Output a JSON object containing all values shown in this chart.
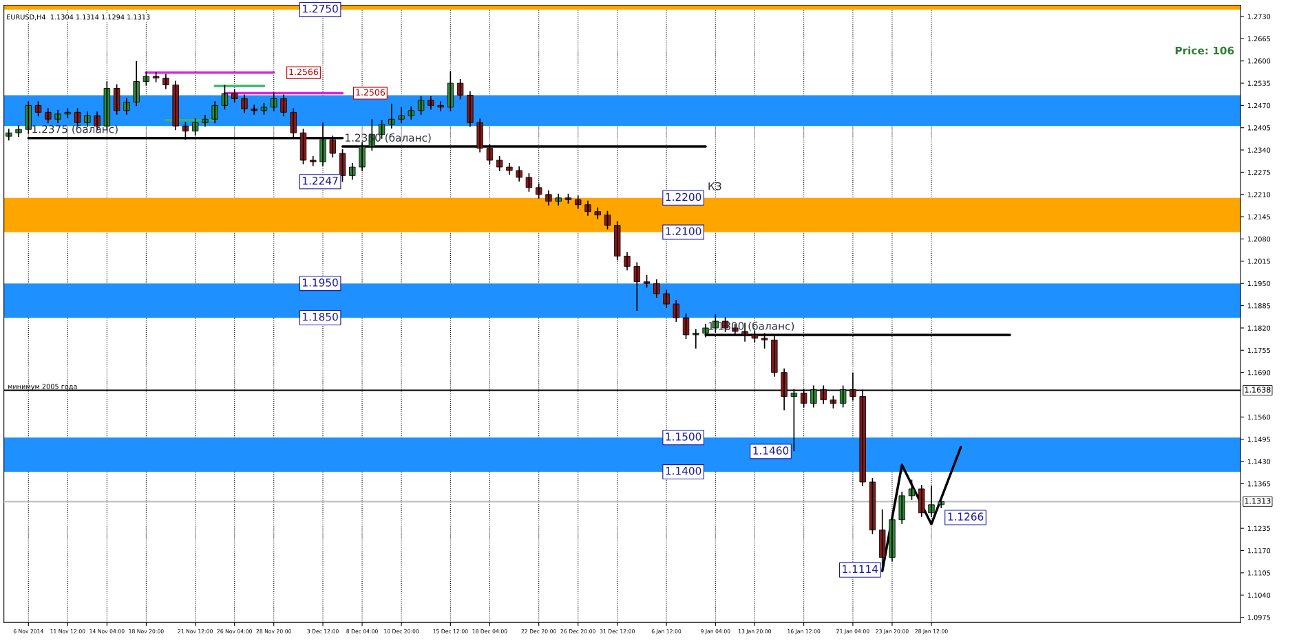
{
  "chart_data": {
    "type": "candlestick",
    "title": "EURUSD,H4  1.1304 1.1314 1.1294 1.1313",
    "categories": [
      null,
      null,
      "6 Nov 2014",
      null,
      null,
      null,
      "11 Nov 12:00",
      null,
      null,
      null,
      "14 Nov 04:00",
      null,
      null,
      null,
      "18 Nov 20:00",
      null,
      null,
      null,
      null,
      "21 Nov 12:00",
      null,
      null,
      null,
      "26 Nov 04:00",
      null,
      null,
      null,
      "28 Nov 20:00",
      null,
      null,
      null,
      null,
      "3 Dec 12:00",
      null,
      null,
      null,
      "8 Dec 04:00",
      null,
      null,
      null,
      "10 Dec 20:00",
      null,
      null,
      null,
      null,
      "15 Dec 12:00",
      null,
      null,
      null,
      "18 Dec 04:00",
      null,
      null,
      null,
      null,
      "22 Dec 20:00",
      null,
      null,
      null,
      "26 Dec 20:00",
      null,
      null,
      null,
      "31 Dec 12:00",
      null,
      null,
      null,
      null,
      "6 Jan 12:00",
      null,
      null,
      null,
      null,
      "9 Jan 04:00",
      null,
      null,
      null,
      "13 Jan 20:00",
      null,
      null,
      null,
      null,
      "16 Jan 12:00",
      null,
      null,
      null,
      null,
      "21 Jan 04:00",
      null,
      null,
      null,
      "23 Jan 20:00",
      null,
      null,
      null,
      "28 Jan 12:00",
      null,
      null,
      null,
      null,
      null,
      null,
      null,
      null,
      null,
      null,
      null,
      null,
      null,
      null,
      null,
      null,
      null,
      null,
      null,
      null,
      null,
      null,
      null,
      null,
      null,
      null,
      null,
      null,
      null,
      null,
      null
    ],
    "ohlc": [
      [
        1.238,
        1.2402,
        1.2368,
        1.239
      ],
      [
        1.239,
        1.2412,
        1.2378,
        1.24
      ],
      [
        1.24,
        1.2482,
        1.2388,
        1.247
      ],
      [
        1.247,
        1.2482,
        1.2438,
        1.245
      ],
      [
        1.245,
        1.2462,
        1.2418,
        1.243
      ],
      [
        1.243,
        1.2457,
        1.2418,
        1.2445
      ],
      [
        1.2445,
        1.2462,
        1.2433,
        1.245
      ],
      [
        1.245,
        1.2462,
        1.2408,
        1.242
      ],
      [
        1.242,
        1.2452,
        1.2408,
        1.244
      ],
      [
        1.244,
        1.2452,
        1.2398,
        1.241
      ],
      [
        1.241,
        1.254,
        1.2398,
        1.252
      ],
      [
        1.252,
        1.2532,
        1.2443,
        1.2455
      ],
      [
        1.2455,
        1.2492,
        1.2443,
        1.248
      ],
      [
        1.248,
        1.26,
        1.2468,
        1.254
      ],
      [
        1.254,
        1.2567,
        1.2528,
        1.2555
      ],
      [
        1.2555,
        1.2567,
        1.2538,
        1.255
      ],
      [
        1.255,
        1.2562,
        1.2518,
        1.253
      ],
      [
        1.253,
        1.2542,
        1.2398,
        1.241
      ],
      [
        1.241,
        1.2422,
        1.237,
        1.2395
      ],
      [
        1.2395,
        1.2432,
        1.2383,
        1.242
      ],
      [
        1.242,
        1.2442,
        1.2408,
        1.243
      ],
      [
        1.243,
        1.2482,
        1.2418,
        1.247
      ],
      [
        1.247,
        1.253,
        1.2458,
        1.2505
      ],
      [
        1.2505,
        1.2517,
        1.2478,
        1.249
      ],
      [
        1.249,
        1.2502,
        1.2448,
        1.246
      ],
      [
        1.246,
        1.2472,
        1.2443,
        1.2455
      ],
      [
        1.2455,
        1.2477,
        1.2443,
        1.2465
      ],
      [
        1.2465,
        1.2508,
        1.2453,
        1.249
      ],
      [
        1.249,
        1.2502,
        1.2438,
        1.245
      ],
      [
        1.245,
        1.2462,
        1.2378,
        1.239
      ],
      [
        1.239,
        1.2402,
        1.2298,
        1.231
      ],
      [
        1.231,
        1.2322,
        1.2293,
        1.2305
      ],
      [
        1.2305,
        1.242,
        1.2293,
        1.237
      ],
      [
        1.237,
        1.2382,
        1.2318,
        1.233
      ],
      [
        1.233,
        1.2342,
        1.2247,
        1.2265
      ],
      [
        1.2265,
        1.2302,
        1.2253,
        1.229
      ],
      [
        1.229,
        1.2362,
        1.2278,
        1.235
      ],
      [
        1.235,
        1.243,
        1.2338,
        1.2385
      ],
      [
        1.2385,
        1.2427,
        1.2373,
        1.2415
      ],
      [
        1.2415,
        1.2475,
        1.2403,
        1.243
      ],
      [
        1.243,
        1.2465,
        1.2418,
        1.244
      ],
      [
        1.244,
        1.2467,
        1.2428,
        1.2455
      ],
      [
        1.2455,
        1.2497,
        1.2443,
        1.2485
      ],
      [
        1.2485,
        1.2497,
        1.2458,
        1.247
      ],
      [
        1.247,
        1.2482,
        1.2453,
        1.2465
      ],
      [
        1.2465,
        1.257,
        1.2453,
        1.2535
      ],
      [
        1.2535,
        1.2547,
        1.2488,
        1.25
      ],
      [
        1.25,
        1.2512,
        1.2408,
        1.242
      ],
      [
        1.242,
        1.2432,
        1.2333,
        1.2345
      ],
      [
        1.2345,
        1.2357,
        1.2298,
        1.231
      ],
      [
        1.231,
        1.2322,
        1.2278,
        1.229
      ],
      [
        1.229,
        1.2302,
        1.2268,
        1.228
      ],
      [
        1.228,
        1.2292,
        1.2248,
        1.226
      ],
      [
        1.226,
        1.2272,
        1.2218,
        1.223
      ],
      [
        1.223,
        1.2242,
        1.2198,
        1.221
      ],
      [
        1.221,
        1.2222,
        1.2178,
        1.219
      ],
      [
        1.219,
        1.2212,
        1.2178,
        1.22
      ],
      [
        1.22,
        1.2212,
        1.2183,
        1.2195
      ],
      [
        1.2195,
        1.2207,
        1.2168,
        1.218
      ],
      [
        1.218,
        1.2192,
        1.2148,
        1.216
      ],
      [
        1.216,
        1.2172,
        1.2138,
        1.215
      ],
      [
        1.215,
        1.2162,
        1.2108,
        1.212
      ],
      [
        1.212,
        1.2132,
        1.2018,
        1.203
      ],
      [
        1.203,
        1.2042,
        1.1988,
        1.2
      ],
      [
        1.2,
        1.2012,
        1.187,
        1.1955
      ],
      [
        1.1955,
        1.1975,
        1.1938,
        1.195
      ],
      [
        1.195,
        1.1962,
        1.1908,
        1.192
      ],
      [
        1.192,
        1.1932,
        1.1878,
        1.189
      ],
      [
        1.189,
        1.1902,
        1.1838,
        1.185
      ],
      [
        1.185,
        1.1862,
        1.1788,
        1.18
      ],
      [
        1.18,
        1.1817,
        1.176,
        1.1805
      ],
      [
        1.1805,
        1.1832,
        1.1793,
        1.182
      ],
      [
        1.182,
        1.186,
        1.1808,
        1.184
      ],
      [
        1.184,
        1.1852,
        1.1808,
        1.182
      ],
      [
        1.182,
        1.1832,
        1.1798,
        1.181
      ],
      [
        1.181,
        1.1835,
        1.178,
        1.18
      ],
      [
        1.18,
        1.1812,
        1.1778,
        1.179
      ],
      [
        1.179,
        1.1805,
        1.176,
        1.1785
      ],
      [
        1.1785,
        1.1797,
        1.1678,
        1.169
      ],
      [
        1.169,
        1.1702,
        1.158,
        1.162
      ],
      [
        1.162,
        1.1642,
        1.146,
        1.163
      ],
      [
        1.163,
        1.1642,
        1.1588,
        1.16
      ],
      [
        1.16,
        1.1652,
        1.1588,
        1.164
      ],
      [
        1.164,
        1.1652,
        1.1598,
        1.161
      ],
      [
        1.161,
        1.1622,
        1.1585,
        1.16
      ],
      [
        1.16,
        1.1652,
        1.1588,
        1.164
      ],
      [
        1.164,
        1.169,
        1.1608,
        1.162
      ],
      [
        1.162,
        1.164,
        1.1358,
        1.137
      ],
      [
        1.137,
        1.1382,
        1.1218,
        1.123
      ],
      [
        1.123,
        1.129,
        1.1114,
        1.115
      ],
      [
        1.115,
        1.1272,
        1.1138,
        1.126
      ],
      [
        1.126,
        1.1342,
        1.1248,
        1.133
      ],
      [
        1.133,
        1.1377,
        1.1318,
        1.135
      ],
      [
        1.135,
        1.1362,
        1.1268,
        1.128
      ],
      [
        1.128,
        1.136,
        1.1268,
        1.1304
      ],
      [
        1.1304,
        1.1314,
        1.1294,
        1.1313
      ],
      null,
      null,
      null,
      null,
      null,
      null,
      null,
      null,
      null,
      null,
      null,
      null,
      null,
      null,
      null,
      null,
      null,
      null,
      null,
      null,
      null,
      null,
      null,
      null,
      null,
      null,
      null,
      null,
      null,
      null
    ],
    "series": [
      {
        "type": "line",
        "color": "#e020e0",
        "values": [
          null,
          null,
          null,
          null,
          null,
          null,
          null,
          null,
          null,
          null,
          null,
          null,
          null,
          null,
          1.2566,
          1.2566,
          1.2566,
          1.2566,
          1.2566,
          1.2566,
          1.2566,
          1.2566,
          1.2566,
          1.2566,
          1.2566,
          1.2566,
          1.2566,
          1.2566,
          null,
          null,
          null,
          null,
          null,
          null,
          null,
          null,
          null,
          null,
          null,
          null,
          null,
          null,
          null,
          null,
          null,
          null,
          null,
          null,
          null,
          null,
          null,
          null,
          null,
          null,
          null,
          null,
          null,
          null,
          null,
          null,
          null,
          null,
          null,
          null,
          null,
          null,
          null,
          null,
          null,
          null,
          null,
          null,
          null,
          null,
          null,
          null,
          null,
          null,
          null,
          null,
          null,
          null,
          null,
          null,
          null,
          null,
          null,
          null,
          null,
          null,
          null,
          null,
          null,
          null,
          null,
          null,
          null,
          null,
          null,
          null,
          null,
          null,
          null,
          null,
          null,
          null,
          null,
          null,
          null,
          null,
          null,
          null,
          null,
          null,
          null,
          null,
          null,
          null,
          null,
          null,
          null,
          null,
          null,
          null,
          null,
          null
        ]
      },
      {
        "type": "line",
        "color": "#e020e0",
        "values": [
          null,
          null,
          null,
          null,
          null,
          null,
          null,
          null,
          null,
          null,
          null,
          null,
          null,
          null,
          null,
          null,
          null,
          null,
          null,
          null,
          null,
          null,
          1.2506,
          1.2506,
          1.2506,
          1.2506,
          1.2506,
          1.2506,
          1.2506,
          1.2506,
          1.2506,
          1.2506,
          1.2506,
          1.2506,
          1.2506,
          null,
          null,
          null,
          null,
          null,
          null,
          null,
          null,
          null,
          null,
          null,
          null,
          null,
          null,
          null,
          null,
          null,
          null,
          null,
          null,
          null,
          null,
          null,
          null,
          null,
          null,
          null,
          null,
          null,
          null,
          null,
          null,
          null,
          null,
          null,
          null,
          null,
          null,
          null,
          null,
          null,
          null,
          null,
          null,
          null,
          null,
          null,
          null,
          null,
          null,
          null,
          null,
          null,
          null,
          null,
          null,
          null,
          null,
          null,
          null,
          null,
          null,
          null,
          null,
          null,
          null,
          null,
          null,
          null,
          null,
          null,
          null,
          null,
          null,
          null,
          null,
          null,
          null,
          null,
          null,
          null,
          null,
          null,
          null,
          null,
          null,
          null,
          null,
          null,
          null,
          null
        ]
      },
      {
        "type": "line",
        "color": "#3cb371",
        "values": [
          null,
          null,
          null,
          null,
          null,
          null,
          null,
          null,
          null,
          null,
          null,
          null,
          null,
          null,
          null,
          null,
          null,
          null,
          null,
          null,
          null,
          1.2527,
          1.2527,
          1.2527,
          1.2527,
          1.2527,
          1.2527,
          null,
          null,
          null,
          null,
          null,
          null,
          null,
          null,
          null,
          null,
          null,
          null,
          null,
          null,
          null,
          null,
          null,
          null,
          null,
          null,
          null,
          null,
          null,
          null,
          null,
          null,
          null,
          null,
          null,
          null,
          null,
          null,
          null,
          null,
          null,
          null,
          null,
          null,
          null,
          null,
          null,
          null,
          null,
          null,
          null,
          null,
          null,
          null,
          null,
          null,
          null,
          null,
          null,
          null,
          null,
          null,
          null,
          null,
          null,
          null,
          null,
          null,
          null,
          null,
          null,
          null,
          null,
          null,
          null,
          null,
          null,
          null,
          null,
          null,
          null,
          null,
          null,
          null,
          null,
          null,
          null,
          null,
          null,
          null,
          null,
          null,
          null,
          null,
          null,
          null,
          null,
          null,
          null,
          null,
          null,
          null,
          null,
          null,
          null
        ]
      },
      {
        "type": "line",
        "color": "#3cb371",
        "values": [
          null,
          null,
          null,
          null,
          null,
          null,
          null,
          null,
          null,
          null,
          null,
          null,
          null,
          null,
          null,
          null,
          1.2427,
          null,
          1.2427,
          1.2427,
          1.2427,
          1.2427,
          null,
          null,
          null,
          null,
          null,
          null,
          null,
          null,
          null,
          null,
          null,
          null,
          null,
          null,
          null,
          null,
          null,
          null,
          null,
          null,
          null,
          null,
          null,
          null,
          null,
          null,
          null,
          null,
          null,
          null,
          null,
          null,
          null,
          null,
          null,
          null,
          null,
          null,
          null,
          null,
          null,
          null,
          null,
          null,
          null,
          null,
          null,
          null,
          null,
          null,
          null,
          null,
          null,
          null,
          null,
          null,
          null,
          null,
          null,
          null,
          null,
          null,
          null,
          null,
          null,
          null,
          null,
          null,
          null,
          null,
          null,
          null,
          null,
          null,
          null,
          null,
          null,
          null,
          null,
          null,
          null,
          null,
          null,
          null,
          null,
          null,
          null,
          null,
          null,
          null,
          null,
          null,
          null,
          null,
          null,
          null,
          null,
          null,
          null,
          null,
          null,
          null,
          null,
          null
        ]
      },
      {
        "type": "line",
        "color": "#000000",
        "values": [
          null,
          null,
          1.2375,
          1.2375,
          1.2375,
          1.2375,
          1.2375,
          1.2375,
          1.2375,
          1.2375,
          1.2375,
          1.2375,
          1.2375,
          1.2375,
          1.2375,
          1.2375,
          1.2375,
          1.2375,
          1.2375,
          1.2375,
          1.2375,
          1.2375,
          1.2375,
          1.2375,
          1.2375,
          1.2375,
          1.2375,
          1.2375,
          1.2375,
          1.2375,
          1.2375,
          1.2375,
          1.2375,
          1.2375,
          1.2375,
          null,
          null,
          null,
          null,
          null,
          null,
          null,
          null,
          null,
          null,
          null,
          null,
          null,
          null,
          null,
          null,
          null,
          null,
          null,
          null,
          null,
          null,
          null,
          null,
          null,
          null,
          null,
          null,
          null,
          null,
          null,
          null,
          null,
          null,
          null,
          null,
          null,
          null,
          null,
          null,
          null,
          null,
          null,
          null,
          null,
          null,
          null,
          null,
          null,
          null,
          null,
          null,
          null,
          null,
          null,
          null,
          null,
          null,
          null,
          null,
          null,
          null,
          null,
          null,
          null,
          null,
          null,
          null,
          null,
          null,
          null,
          null,
          null,
          null,
          null,
          null,
          null,
          null,
          null,
          null,
          null,
          null,
          null,
          null,
          null,
          null,
          null,
          null,
          null,
          null,
          null
        ]
      },
      {
        "type": "line",
        "color": "#000000",
        "values": [
          null,
          null,
          null,
          null,
          null,
          null,
          null,
          null,
          null,
          null,
          null,
          null,
          null,
          null,
          null,
          null,
          null,
          null,
          null,
          null,
          null,
          null,
          null,
          null,
          null,
          null,
          null,
          null,
          null,
          null,
          null,
          null,
          null,
          null,
          1.235,
          1.235,
          1.235,
          1.235,
          1.235,
          1.235,
          1.235,
          1.235,
          1.235,
          1.235,
          1.235,
          1.235,
          1.235,
          1.235,
          1.235,
          1.235,
          1.235,
          1.235,
          1.235,
          1.235,
          1.235,
          1.235,
          1.235,
          1.235,
          1.235,
          1.235,
          1.235,
          1.235,
          1.235,
          1.235,
          1.235,
          1.235,
          1.235,
          1.235,
          1.235,
          1.235,
          1.235,
          1.235,
          null,
          null,
          null,
          null,
          null,
          null,
          null,
          null,
          null,
          null,
          null,
          null,
          null,
          null,
          null,
          null,
          null,
          null,
          null,
          null,
          null,
          null,
          null,
          null,
          null,
          null,
          null,
          null,
          null,
          null,
          null,
          null,
          null,
          null,
          null,
          null,
          null,
          null,
          null,
          null,
          null,
          null,
          null,
          null,
          null,
          null,
          null,
          null,
          null,
          null,
          null,
          null,
          null,
          null
        ]
      },
      {
        "type": "line",
        "color": "#000000",
        "values": [
          null,
          null,
          null,
          null,
          null,
          null,
          null,
          null,
          null,
          null,
          null,
          null,
          null,
          null,
          null,
          null,
          null,
          null,
          null,
          null,
          null,
          null,
          null,
          null,
          null,
          null,
          null,
          null,
          null,
          null,
          null,
          null,
          null,
          null,
          null,
          null,
          null,
          null,
          null,
          null,
          null,
          null,
          null,
          null,
          null,
          null,
          null,
          null,
          null,
          null,
          null,
          null,
          null,
          null,
          null,
          null,
          null,
          null,
          null,
          null,
          null,
          null,
          null,
          null,
          null,
          null,
          null,
          null,
          null,
          null,
          null,
          1.18,
          1.18,
          1.18,
          1.18,
          1.18,
          1.18,
          1.18,
          1.18,
          1.18,
          1.18,
          1.18,
          1.18,
          1.18,
          1.18,
          1.18,
          1.18,
          1.18,
          1.18,
          1.18,
          1.18,
          1.18,
          1.18,
          1.18,
          1.18,
          1.18,
          1.18,
          1.18,
          1.18,
          1.18,
          1.18,
          1.18,
          1.18,
          null,
          null,
          null,
          null,
          null,
          null,
          null,
          null,
          null,
          null,
          null,
          null,
          null,
          null,
          null,
          null,
          null,
          null,
          null,
          null,
          null,
          null,
          null
        ]
      },
      {
        "type": "line",
        "color": "#000000",
        "values": [
          null,
          null,
          null,
          null,
          null,
          null,
          null,
          null,
          null,
          null,
          null,
          null,
          null,
          null,
          null,
          null,
          null,
          null,
          null,
          null,
          null,
          null,
          null,
          null,
          null,
          null,
          null,
          null,
          null,
          null,
          null,
          null,
          null,
          null,
          null,
          null,
          null,
          null,
          null,
          null,
          null,
          null,
          null,
          null,
          null,
          null,
          null,
          null,
          null,
          null,
          null,
          null,
          null,
          null,
          null,
          null,
          null,
          null,
          null,
          null,
          null,
          null,
          null,
          null,
          null,
          null,
          null,
          null,
          null,
          null,
          null,
          null,
          null,
          null,
          null,
          null,
          null,
          null,
          null,
          null,
          null,
          null,
          null,
          null,
          null,
          null,
          null,
          null,
          null,
          1.111,
          null,
          1.142,
          null,
          null,
          1.1247,
          null,
          null,
          1.1472,
          null,
          null,
          null,
          null,
          null,
          null,
          null,
          null,
          null,
          null,
          null,
          null,
          null,
          null,
          null,
          null,
          null,
          null,
          null,
          null,
          null,
          null,
          null,
          null,
          null,
          null,
          null,
          null
        ]
      }
    ],
    "bands": [
      {
        "axis": "y",
        "from": 1.241,
        "to": 1.25,
        "color": "#1e90ff"
      },
      {
        "axis": "y",
        "from": 1.185,
        "to": 1.195,
        "color": "#1e90ff"
      },
      {
        "axis": "y",
        "from": 1.21,
        "to": 1.22,
        "color": "#ffa500"
      },
      {
        "axis": "y",
        "from": 1.14,
        "to": 1.15,
        "color": "#1e90ff"
      },
      {
        "axis": "y",
        "from": 1.275,
        "to": 1.2763,
        "color": "#ffa500"
      }
    ],
    "ref_lines": [
      {
        "axis": "y",
        "value": 1.1638,
        "label": "минимум 2005 года",
        "color": "#000000",
        "line_style": "solid"
      },
      {
        "axis": "y",
        "value": 1.1313,
        "label": null,
        "color": "#c0c0c0",
        "line_style": "solid"
      }
    ],
    "annotations": [
      {
        "text": "1.2750",
        "y": 1.275
      },
      {
        "text": "1.2200",
        "y": 1.22
      },
      {
        "text": "1.2100",
        "y": 1.21
      },
      {
        "text": "1.1950",
        "y": 1.195
      },
      {
        "text": "1.1850",
        "y": 1.185
      },
      {
        "text": "1.1500",
        "y": 1.15
      },
      {
        "text": "1.1400",
        "y": 1.14
      },
      {
        "text": "1.2375 (баланс)",
        "y": 1.2375
      },
      {
        "text": "1.2350 (баланс)",
        "y": 1.235
      },
      {
        "text": "1.1800 (баланс)",
        "y": 1.18
      },
      "1.2566",
      "1.2506",
      "1.1638",
      "1.1313",
      "КЗ",
      "1.2247",
      "1.1460",
      "1.1266",
      "1.1114",
      "Price: 106"
    ],
    "grid": "x",
    "ylim": [
      1.096,
      1.2763
    ],
    "yticks": [
      {
        "value": 1.0975,
        "label": "1.0975"
      },
      {
        "value": 1.104,
        "label": "1.1040"
      },
      {
        "value": 1.1105,
        "label": "1.1105"
      },
      {
        "value": 1.117,
        "label": "1.1170"
      },
      {
        "value": 1.1235,
        "label": "1.1235"
      },
      {
        "value": 1.1365,
        "label": "1.1365"
      },
      {
        "value": 1.143,
        "label": "1.1430"
      },
      {
        "value": 1.1495,
        "label": "1.1495"
      },
      {
        "value": 1.156,
        "label": "1.1560"
      },
      {
        "value": 1.169,
        "label": "1.1690"
      },
      {
        "value": 1.1755,
        "label": "1.1755"
      },
      {
        "value": 1.182,
        "label": "1.1820"
      },
      {
        "value": 1.1885,
        "label": "1.1885"
      },
      {
        "value": 1.195,
        "label": "1.1950"
      },
      {
        "value": 1.2015,
        "label": "1.2015"
      },
      {
        "value": 1.208,
        "label": "1.2080"
      },
      {
        "value": 1.2145,
        "label": "1.2145"
      },
      {
        "value": 1.221,
        "label": "1.2210"
      },
      {
        "value": 1.2275,
        "label": "1.2275"
      },
      {
        "value": 1.234,
        "label": "1.2340"
      },
      {
        "value": 1.2405,
        "label": "1.2405"
      },
      {
        "value": 1.247,
        "label": "1.2470"
      },
      {
        "value": 1.2535,
        "label": "1.2535"
      },
      {
        "value": 1.26,
        "label": "1.2600"
      },
      {
        "value": 1.2665,
        "label": "1.2665"
      },
      {
        "value": 1.273,
        "label": "1.2730"
      }
    ]
  }
}
